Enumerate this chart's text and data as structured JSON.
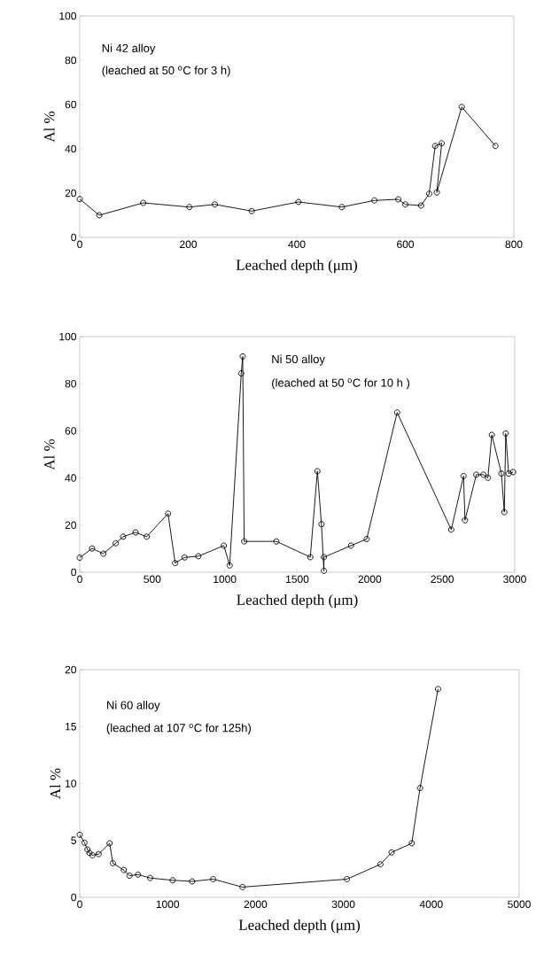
{
  "chart_data": [
    {
      "type": "line",
      "marker": "circle",
      "line_style": "solid",
      "xlabel": "Leached depth (μm)",
      "ylabel": "Al %",
      "annotations": [
        "Ni 42 alloy",
        "(leached at 50 $^{o}$C for 3 h)"
      ],
      "xlim": [
        0,
        800
      ],
      "ylim": [
        0,
        100
      ],
      "xticks": [
        0,
        200,
        400,
        600,
        800
      ],
      "yticks": [
        0,
        20,
        40,
        60,
        80,
        100
      ],
      "series": [
        {
          "color": "#000000",
          "x": [
            0,
            36,
            117,
            202,
            249,
            317,
            403,
            483,
            543,
            587,
            600,
            629,
            644,
            655,
            667,
            658,
            704,
            766
          ],
          "values": [
            17.3,
            10,
            15.6,
            13.7,
            14.9,
            11.9,
            16,
            13.7,
            16.7,
            17.2,
            14.9,
            14.4,
            19.7,
            41.3,
            42.5,
            20.3,
            58.9,
            41.3
          ]
        }
      ]
    },
    {
      "type": "line",
      "marker": "circle",
      "line_style": "solid",
      "xlabel": "Leached depth (μm)",
      "ylabel": "Al %",
      "annotations": [
        "Ni 50 alloy",
        "(leached at 50 $^{o}$C for 10 h )"
      ],
      "xlim": [
        0,
        3000
      ],
      "ylim": [
        0,
        100
      ],
      "xticks": [
        0,
        500,
        1000,
        1500,
        2000,
        2500,
        3000
      ],
      "yticks": [
        0,
        20,
        40,
        60,
        80,
        100
      ],
      "series": [
        {
          "color": "#000000",
          "x": [
            0,
            85,
            163,
            248,
            299,
            385,
            462,
            609,
            658,
            723,
            818,
            994,
            1034,
            1114,
            1124,
            1134,
            1356,
            1590,
            1639,
            1667,
            1684,
            1684,
            1871,
            1979,
            2189,
            2562,
            2647,
            2657,
            2735,
            2784,
            2815,
            2842,
            2908,
            2928,
            2938,
            2958,
            2989
          ],
          "values": [
            6.2,
            10.1,
            7.9,
            12.3,
            15.1,
            16.9,
            15.1,
            24.9,
            3.9,
            6.3,
            6.8,
            11.3,
            2.9,
            84.4,
            91.6,
            13.1,
            13.1,
            6.4,
            42.9,
            20.4,
            0.6,
            6.4,
            11.3,
            14.1,
            67.8,
            18.1,
            40.8,
            22.1,
            41.4,
            41.4,
            40.1,
            58.3,
            41.9,
            25.5,
            58.9,
            41.9,
            42.5
          ]
        }
      ]
    },
    {
      "type": "line",
      "marker": "circle",
      "line_style": "solid",
      "xlabel": "Leached depth (μm)",
      "ylabel": "Al %",
      "annotations": [
        "Ni 60 alloy",
        "(leached at 107 $^{o}$C for 125h)"
      ],
      "xlim": [
        0,
        5000
      ],
      "ylim": [
        0,
        20
      ],
      "xticks": [
        0,
        1000,
        2000,
        3000,
        4000,
        5000
      ],
      "yticks": [
        0,
        5,
        10,
        15,
        20
      ],
      "series": [
        {
          "color": "#000000",
          "x": [
            0,
            54,
            88,
            111,
            145,
            215,
            340,
            377,
            502,
            566,
            663,
            801,
            1057,
            1279,
            1518,
            1852,
            3040,
            3421,
            3549,
            3778,
            3872,
            4077
          ],
          "values": [
            5.5,
            4.8,
            4.2,
            3.9,
            3.7,
            3.8,
            4.75,
            3.0,
            2.4,
            1.9,
            2.0,
            1.7,
            1.5,
            1.4,
            1.6,
            0.9,
            1.6,
            2.9,
            3.95,
            4.75,
            9.6,
            18.3
          ]
        }
      ]
    }
  ]
}
